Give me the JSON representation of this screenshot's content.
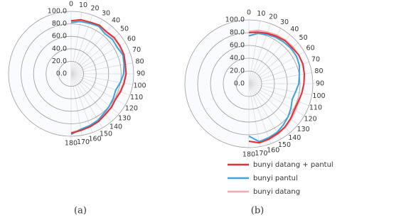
{
  "chart_data": [
    {
      "type": "polar",
      "caption": "(a)",
      "x": [
        0,
        10,
        20,
        30,
        40,
        50,
        60,
        70,
        80,
        90,
        100,
        110,
        120,
        130,
        140,
        150,
        160,
        170,
        180
      ],
      "ylim": [
        0,
        100
      ],
      "yticks": [
        {
          "value": 0,
          "label": "0.0"
        },
        {
          "value": 20,
          "label": "20.0"
        },
        {
          "value": 40,
          "label": "40.0"
        },
        {
          "value": 60,
          "label": "60.0"
        },
        {
          "value": 80,
          "label": "80.0"
        },
        {
          "value": 100,
          "label": "100.0"
        }
      ],
      "series": [
        {
          "color": "#f2a9b0",
          "values": [
            84,
            87,
            87,
            89,
            87,
            89,
            89,
            89,
            87,
            87,
            85,
            83,
            81,
            83,
            84,
            87,
            89,
            91,
            94
          ]
        },
        {
          "color": "#3da3dd",
          "values": [
            82,
            85,
            86,
            88,
            84,
            86,
            85,
            88,
            86,
            84,
            80,
            76,
            78,
            80,
            82,
            86,
            88,
            90,
            97
          ]
        },
        {
          "color": "#e03232",
          "values": [
            85,
            88,
            88,
            90,
            88,
            90,
            90,
            90,
            88,
            88,
            86,
            84,
            82,
            84,
            85,
            88,
            90,
            92,
            95
          ]
        }
      ]
    },
    {
      "type": "polar",
      "caption": "(b)",
      "x": [
        0,
        10,
        20,
        30,
        40,
        50,
        60,
        70,
        80,
        90,
        100,
        110,
        120,
        130,
        140,
        150,
        160,
        170,
        180
      ],
      "ylim": [
        0,
        100
      ],
      "yticks": [
        {
          "value": 0,
          "label": "0.0"
        },
        {
          "value": 20,
          "label": "20.0"
        },
        {
          "value": 40,
          "label": "40.0"
        },
        {
          "value": 60,
          "label": "60.0"
        },
        {
          "value": 80,
          "label": "80.0"
        },
        {
          "value": 100,
          "label": "100.0"
        }
      ],
      "series": [
        {
          "name": "bunyi datang",
          "color": "#f2a9b0",
          "values": [
            82,
            85,
            86,
            88,
            89,
            90,
            90,
            89,
            88,
            86,
            84,
            83,
            84,
            86,
            89,
            91,
            93,
            94,
            90
          ]
        },
        {
          "name": "bunyi pantul",
          "color": "#3da3dd",
          "values": [
            75,
            80,
            82,
            84,
            85,
            86,
            86,
            84,
            80,
            78,
            74,
            72,
            76,
            80,
            84,
            88,
            90,
            92,
            82
          ]
        },
        {
          "name": "bunyi datang + pantul",
          "color": "#e03232",
          "values": [
            80,
            82,
            84,
            86,
            88,
            88,
            90,
            90,
            88,
            86,
            84,
            82,
            82,
            85,
            88,
            90,
            92,
            94,
            90
          ]
        }
      ]
    }
  ]
}
